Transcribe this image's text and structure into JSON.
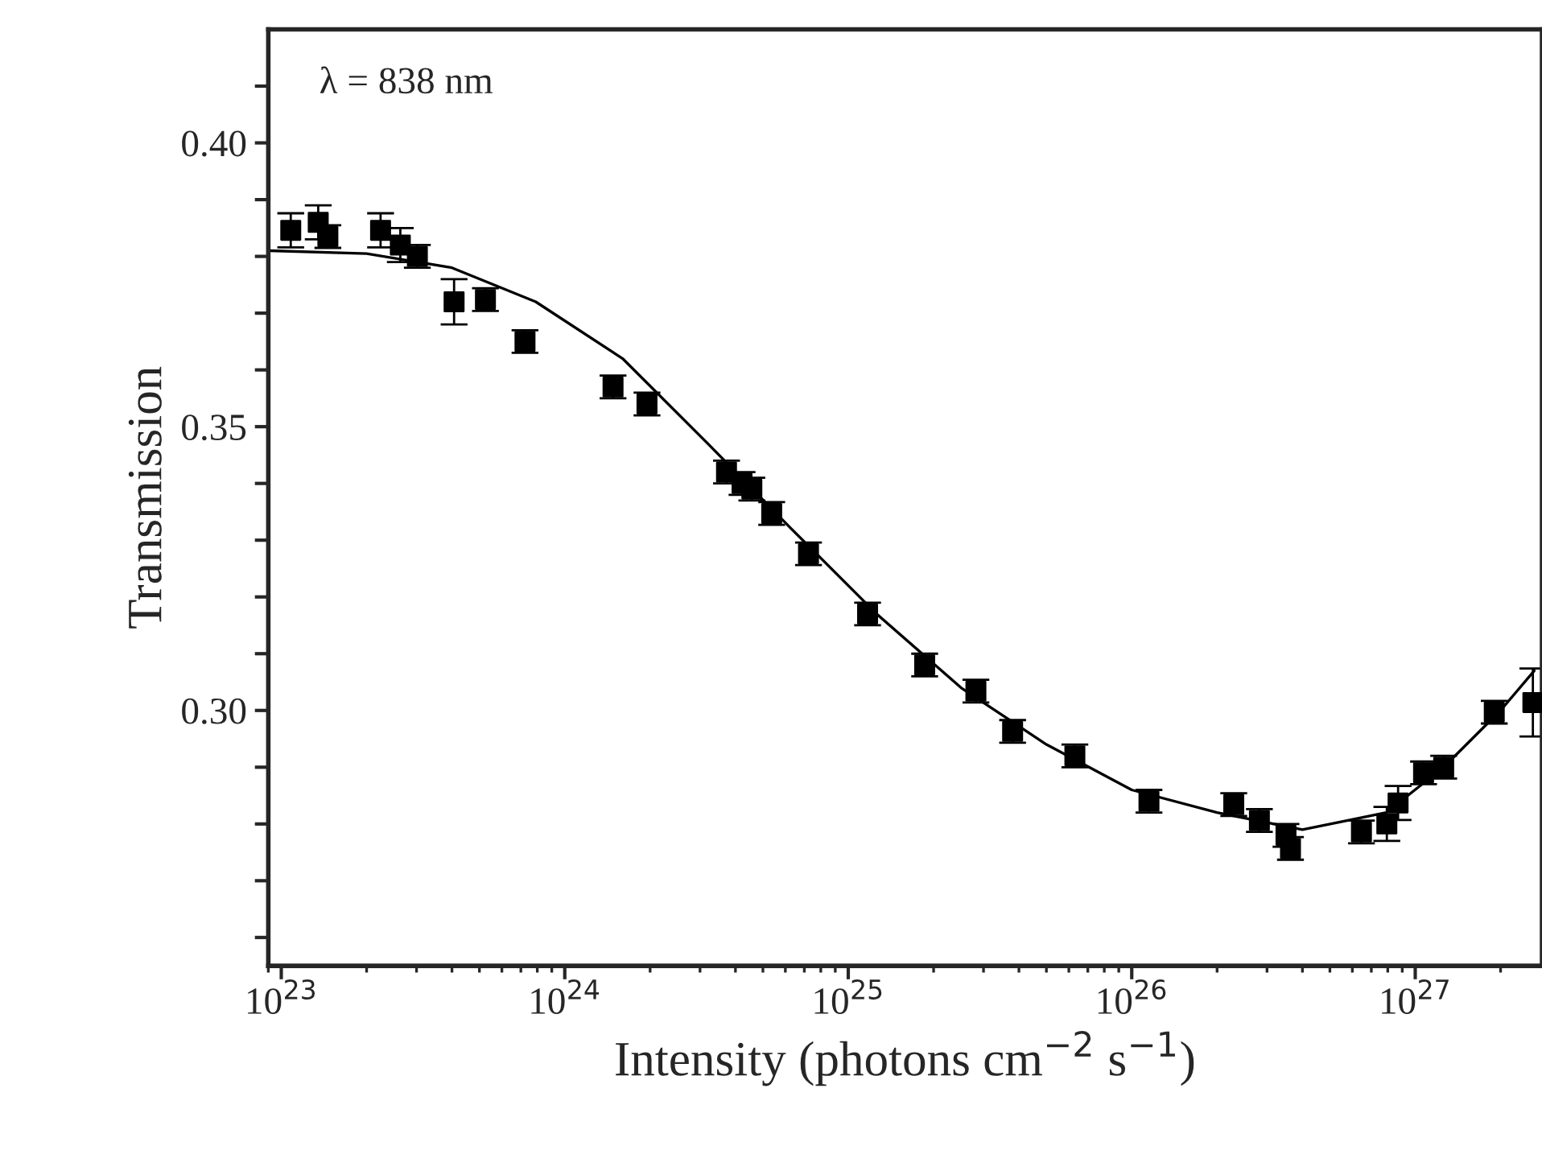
{
  "chart_data": {
    "type": "scatter",
    "xlabel": "Intensity (photons cm$^{−2}$ s$^{−1}$)",
    "ylabel": "Transmission",
    "annotations": [
      "λ = 838 nm"
    ],
    "log": "x",
    "grid": false,
    "legend": false,
    "xlim": [
      9e+22,
      2.8e+27
    ],
    "xticks": [
      {
        "value": 1e+23,
        "label": "10$^{23}$"
      },
      {
        "value": 1e+24,
        "label": "10$^{24}$"
      },
      {
        "value": 1e+25,
        "label": "10$^{25}$"
      },
      {
        "value": 1e+26,
        "label": "10$^{26}$"
      },
      {
        "value": 1e+27,
        "label": "10$^{27}$"
      }
    ],
    "ylim": [
      0.255,
      0.42
    ],
    "yticks": [
      {
        "value": 0.26,
        "label": null
      },
      {
        "value": 0.27,
        "label": null
      },
      {
        "value": 0.28,
        "label": null
      },
      {
        "value": 0.29,
        "label": null
      },
      {
        "value": 0.3,
        "label": "0.30"
      },
      {
        "value": 0.31,
        "label": null
      },
      {
        "value": 0.32,
        "label": null
      },
      {
        "value": 0.33,
        "label": null
      },
      {
        "value": 0.34,
        "label": null
      },
      {
        "value": 0.35,
        "label": "0.35"
      },
      {
        "value": 0.36,
        "label": null
      },
      {
        "value": 0.37,
        "label": null
      },
      {
        "value": 0.38,
        "label": null
      },
      {
        "value": 0.39,
        "label": null
      },
      {
        "value": 0.4,
        "label": "0.40"
      },
      {
        "value": 0.41,
        "label": null
      }
    ],
    "series": [
      {
        "color": "#000000",
        "marker": "square",
        "x": [
          1.08e+23,
          1.35e+23,
          1.46e+23,
          2.24e+23,
          2.63e+23,
          3.02e+23,
          4.07e+23,
          5.25e+23,
          7.24e+23,
          1.48e+24,
          1.95e+24,
          3.72e+24,
          4.22e+24,
          4.57e+24,
          5.37e+24,
          7.24e+24,
          1.17e+25,
          1.86e+25,
          2.82e+25,
          3.8e+25,
          6.3e+25,
          1.15e+26,
          2.29e+26,
          2.82e+26,
          3.5e+26,
          3.63e+26,
          6.46e+26,
          7.94e+26,
          8.7e+26,
          1.07e+27,
          1.26e+27,
          1.9e+27,
          2.6e+27
        ],
        "values": [
          0.3846,
          0.386,
          0.3835,
          0.3846,
          0.382,
          0.38,
          0.372,
          0.3724,
          0.365,
          0.357,
          0.354,
          0.342,
          0.34,
          0.339,
          0.3347,
          0.3276,
          0.317,
          0.308,
          0.3034,
          0.2963,
          0.292,
          0.284,
          0.2834,
          0.2806,
          0.278,
          0.2757,
          0.2786,
          0.28,
          0.2837,
          0.289,
          0.29,
          0.2997,
          0.3014
        ],
        "errors": [
          0.003,
          0.003,
          0.002,
          0.003,
          0.003,
          0.002,
          0.004,
          0.002,
          0.002,
          0.002,
          0.002,
          0.002,
          0.002,
          0.002,
          0.002,
          0.002,
          0.002,
          0.002,
          0.002,
          0.002,
          0.002,
          0.002,
          0.002,
          0.002,
          0.002,
          0.002,
          0.002,
          0.003,
          0.003,
          0.002,
          0.002,
          0.002,
          0.006
        ]
      },
      {
        "type": "line",
        "color": "#000000",
        "line_style": "solid",
        "x": [
          9.1e+22,
          2e+23,
          4e+23,
          7.9e+23,
          1.6e+24,
          3.2e+24,
          6.3e+24,
          1.26e+25,
          2.5e+25,
          5e+25,
          1e+26,
          2e+26,
          4e+26,
          7.9e+26,
          1.26e+27,
          2e+27,
          2.63e+27
        ],
        "values": [
          0.381,
          0.3805,
          0.378,
          0.372,
          0.362,
          0.347,
          0.332,
          0.317,
          0.304,
          0.294,
          0.286,
          0.282,
          0.279,
          0.282,
          0.29,
          0.3,
          0.307
        ]
      }
    ]
  }
}
